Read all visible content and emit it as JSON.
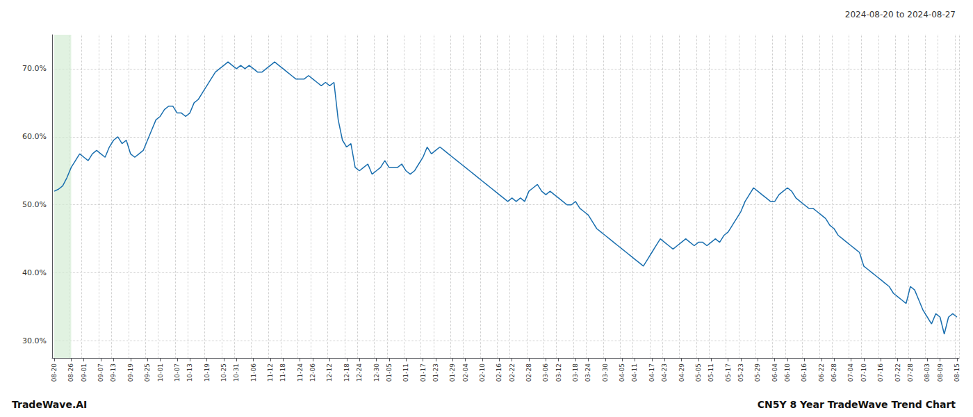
{
  "chart_data": {
    "type": "line",
    "title": "2024-08-20 to 2024-08-27",
    "annotations": [
      "TradeWave.AI",
      "CN5Y 8 Year TradeWave Trend Chart"
    ],
    "categories": [
      "08-20",
      null,
      null,
      null,
      "08-26",
      null,
      null,
      "09-01",
      null,
      null,
      null,
      "09-07",
      null,
      null,
      "09-13",
      null,
      null,
      null,
      "09-19",
      null,
      null,
      null,
      "09-25",
      null,
      null,
      "10-01",
      null,
      null,
      null,
      "10-07",
      null,
      null,
      "10-13",
      null,
      null,
      null,
      "10-19",
      null,
      null,
      null,
      "10-25",
      null,
      null,
      "10-31",
      null,
      null,
      null,
      "11-06",
      null,
      null,
      null,
      "11-12",
      null,
      null,
      "11-18",
      null,
      null,
      null,
      "11-24",
      null,
      null,
      "12-06",
      null,
      null,
      null,
      "12-12",
      null,
      null,
      null,
      "12-18",
      null,
      null,
      "12-24",
      null,
      null,
      null,
      "12-30",
      null,
      null,
      "01-05",
      null,
      null,
      null,
      "01-11",
      null,
      null,
      null,
      "01-17",
      null,
      null,
      "01-23",
      null,
      null,
      null,
      "01-29",
      null,
      null,
      "02-04",
      null,
      null,
      null,
      "02-10",
      null,
      null,
      null,
      "02-16",
      null,
      null,
      "02-22",
      null,
      null,
      null,
      "02-28",
      null,
      null,
      null,
      "03-06",
      null,
      null,
      "03-12",
      null,
      null,
      null,
      "03-18",
      null,
      null,
      "03-24",
      null,
      null,
      null,
      "03-30",
      null,
      null,
      null,
      "04-05",
      null,
      null,
      "04-11",
      null,
      null,
      null,
      "04-17",
      null,
      null,
      "04-23",
      null,
      null,
      null,
      "04-29",
      null,
      null,
      null,
      "05-05",
      null,
      null,
      "05-11",
      null,
      null,
      null,
      "05-17",
      null,
      null,
      "05-23",
      null,
      null,
      null,
      "05-29",
      null,
      null,
      null,
      "06-04",
      null,
      null,
      "06-10",
      null,
      null,
      null,
      "06-16",
      null,
      null,
      null,
      "06-22",
      null,
      null,
      "06-28",
      null,
      null,
      null,
      "07-04",
      null,
      null,
      "07-10",
      null,
      null,
      null,
      "07-16",
      null,
      null,
      null,
      "07-22",
      null,
      null,
      "07-28",
      null,
      null,
      null,
      "08-03",
      null,
      null,
      "08-09",
      null,
      null,
      null,
      "08-15"
    ],
    "values": [
      52.0,
      52.3,
      52.8,
      54.0,
      55.5,
      56.5,
      57.5,
      57.0,
      56.5,
      57.5,
      58.0,
      57.5,
      57.0,
      58.5,
      59.5,
      60.0,
      59.0,
      59.5,
      57.5,
      57.0,
      57.5,
      58.0,
      59.5,
      61.0,
      62.5,
      63.0,
      64.0,
      64.5,
      64.5,
      63.5,
      63.5,
      63.0,
      63.5,
      65.0,
      65.5,
      66.5,
      67.5,
      68.5,
      69.5,
      70.0,
      70.5,
      71.0,
      70.5,
      70.0,
      70.5,
      70.0,
      70.5,
      70.0,
      69.5,
      69.5,
      70.0,
      70.5,
      71.0,
      70.5,
      70.0,
      69.5,
      69.0,
      68.5,
      68.5,
      68.5,
      69.0,
      68.5,
      68.0,
      67.5,
      68.0,
      67.5,
      68.0,
      62.5,
      59.5,
      58.5,
      59.0,
      55.5,
      55.0,
      55.5,
      56.0,
      54.5,
      55.0,
      55.5,
      56.5,
      55.5,
      55.5,
      55.5,
      56.0,
      55.0,
      54.5,
      55.0,
      56.0,
      57.0,
      58.5,
      57.5,
      58.0,
      58.5,
      58.0,
      57.5,
      57.0,
      56.5,
      56.0,
      55.5,
      55.0,
      54.5,
      54.0,
      53.5,
      53.0,
      52.5,
      52.0,
      51.5,
      51.0,
      50.5,
      51.0,
      50.5,
      51.0,
      50.5,
      52.0,
      52.5,
      53.0,
      52.0,
      51.5,
      52.0,
      51.5,
      51.0,
      50.5,
      50.0,
      50.0,
      50.5,
      49.5,
      49.0,
      48.5,
      47.5,
      46.5,
      46.0,
      45.5,
      45.0,
      44.5,
      44.0,
      43.5,
      43.0,
      42.5,
      42.0,
      41.5,
      41.0,
      42.0,
      43.0,
      44.0,
      45.0,
      44.5,
      44.0,
      43.5,
      44.0,
      44.5,
      45.0,
      44.5,
      44.0,
      44.5,
      44.5,
      44.0,
      44.5,
      45.0,
      44.5,
      45.5,
      46.0,
      47.0,
      48.0,
      49.0,
      50.5,
      51.5,
      52.5,
      52.0,
      51.5,
      51.0,
      50.5,
      50.5,
      51.5,
      52.0,
      52.5,
      52.0,
      51.0,
      50.5,
      50.0,
      49.5,
      49.5,
      49.0,
      48.5,
      48.0,
      47.0,
      46.5,
      45.5,
      45.0,
      44.5,
      44.0,
      43.5,
      43.0,
      41.0,
      40.5,
      40.0,
      39.5,
      39.0,
      38.5,
      38.0,
      37.0,
      36.5,
      36.0,
      35.5,
      38.0,
      37.5,
      36.0,
      34.5,
      33.5,
      32.5,
      34.0,
      33.5,
      31.0,
      33.5,
      34.0,
      33.5
    ],
    "color": "#1a6faf",
    "highlight": {
      "start": "08-20",
      "end": "08-26",
      "color": "#d4ecd4"
    },
    "ylim": [
      27.5,
      75.0
    ],
    "yticks": [
      {
        "value": 30.0,
        "label": "30.0%"
      },
      {
        "value": 40.0,
        "label": "40.0%"
      },
      {
        "value": 50.0,
        "label": "50.0%"
      },
      {
        "value": 60.0,
        "label": "60.0%"
      },
      {
        "value": 70.0,
        "label": "70.0%"
      }
    ],
    "grid": true
  }
}
